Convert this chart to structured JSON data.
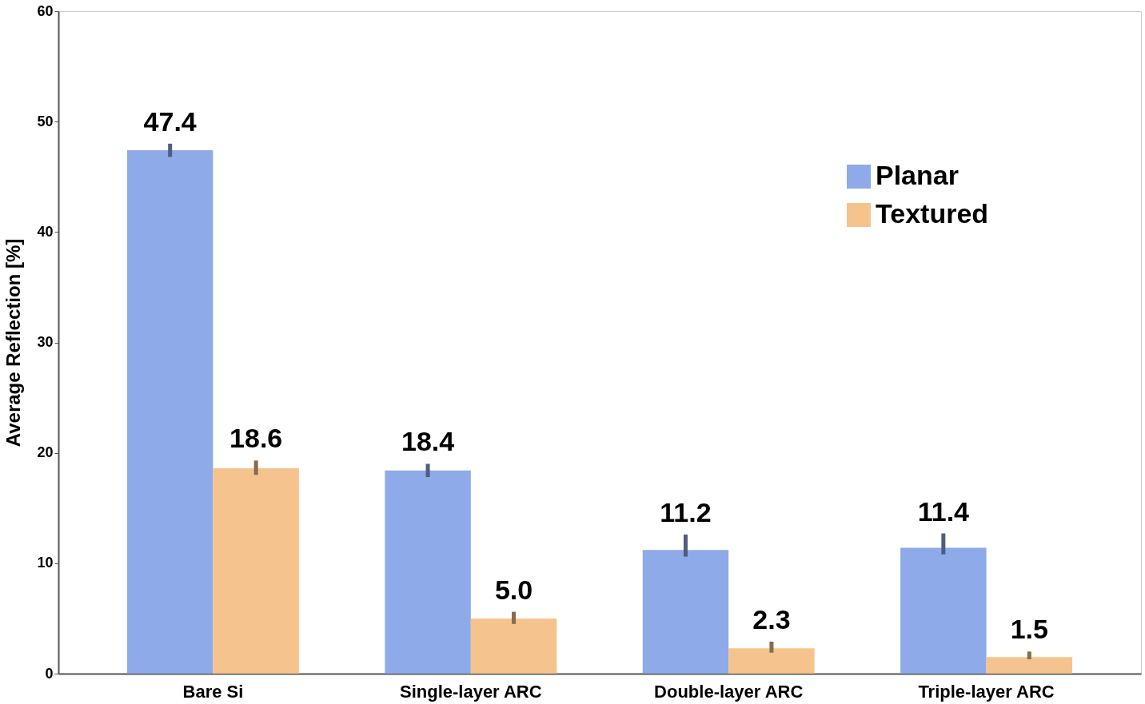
{
  "chart_data": {
    "type": "bar",
    "ylabel": "Average Reflection [%]",
    "categories": [
      "Bare Si",
      "Single-layer ARC",
      "Double-layer ARC",
      "Triple-layer ARC"
    ],
    "series": [
      {
        "name": "Planar",
        "color": "#8eaae8",
        "values": [
          47.4,
          18.4,
          11.2,
          11.4
        ],
        "value_labels": [
          "47.4",
          "18.4",
          "11.2",
          "11.4"
        ],
        "errors": [
          [
            46.8,
            48.0
          ],
          [
            17.8,
            19.0
          ],
          [
            10.6,
            12.6
          ],
          [
            10.8,
            12.7
          ]
        ]
      },
      {
        "name": "Textured",
        "color": "#f5c48e",
        "values": [
          18.6,
          5.0,
          2.3,
          1.5
        ],
        "value_labels": [
          "18.6",
          "5.0",
          "2.3",
          "1.5"
        ],
        "errors": [
          [
            18.0,
            19.3
          ],
          [
            4.5,
            5.6
          ],
          [
            1.9,
            2.9
          ],
          [
            1.3,
            2.0
          ]
        ]
      }
    ],
    "ylim": [
      0,
      60
    ],
    "yticks": [
      0,
      10,
      20,
      30,
      40,
      50,
      60
    ],
    "grid": false,
    "legend": "top right"
  }
}
